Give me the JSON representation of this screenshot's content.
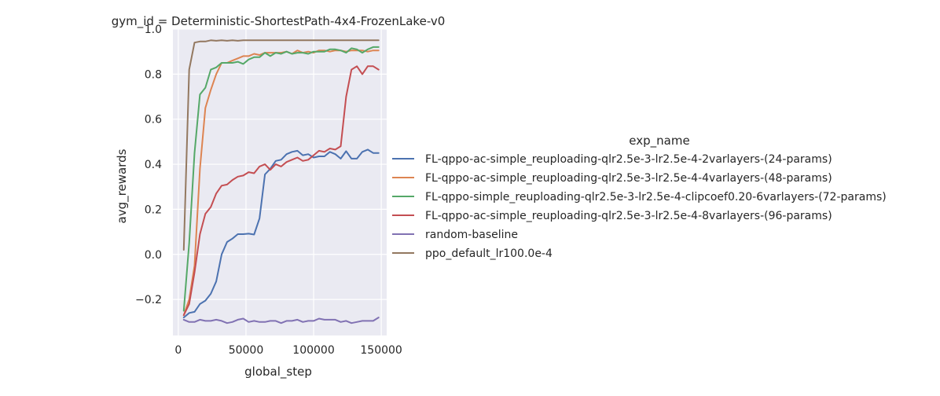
{
  "chart_data": {
    "type": "line",
    "title": "gym_id = Deterministic-ShortestPath-4x4-FrozenLake-v0",
    "xlabel": "global_step",
    "ylabel": "avg_rewards",
    "xlim": [
      -4000,
      154000
    ],
    "ylim": [
      -0.36,
      1.0
    ],
    "xticks": [
      0,
      50000,
      100000,
      150000
    ],
    "xtick_labels": [
      "0",
      "50000",
      "100000",
      "150000"
    ],
    "yticks": [
      -0.2,
      0.0,
      0.2,
      0.4,
      0.6,
      0.8,
      1.0
    ],
    "ytick_labels": [
      "−0.2",
      "0.0",
      "0.2",
      "0.4",
      "0.6",
      "0.8",
      "1.0"
    ],
    "grid": true,
    "legend_title": "exp_name",
    "legend_position": "right",
    "background_color": "#eaeaf2",
    "series": [
      {
        "name": "FL-qppo-ac-simple_reuploading-qlr2.5e-3-lr2.5e-4-2varlayers-(24-params)",
        "color": "#4c72b0",
        "x": [
          4000,
          8000,
          12000,
          16000,
          20000,
          24000,
          28000,
          32000,
          36000,
          40000,
          44000,
          48000,
          52000,
          56000,
          60000,
          64000,
          68000,
          72000,
          76000,
          80000,
          84000,
          88000,
          92000,
          96000,
          100000,
          104000,
          108000,
          112000,
          116000,
          120000,
          124000,
          128000,
          132000,
          136000,
          140000,
          144000,
          148000
        ],
        "y": [
          -0.28,
          -0.26,
          -0.255,
          -0.22,
          -0.205,
          -0.175,
          -0.12,
          0.0,
          0.055,
          0.07,
          0.09,
          0.09,
          0.092,
          0.088,
          0.16,
          0.355,
          0.38,
          0.415,
          0.42,
          0.445,
          0.455,
          0.46,
          0.44,
          0.445,
          0.43,
          0.435,
          0.435,
          0.455,
          0.445,
          0.425,
          0.458,
          0.425,
          0.425,
          0.455,
          0.465,
          0.45,
          0.45
        ]
      },
      {
        "name": "FL-qppo-ac-simple_reuploading-qlr2.5e-3-lr2.5e-4-4varlayers-(48-params)",
        "color": "#dd8452",
        "x": [
          4000,
          8000,
          12000,
          16000,
          20000,
          24000,
          28000,
          32000,
          36000,
          40000,
          44000,
          48000,
          52000,
          56000,
          60000,
          64000,
          68000,
          72000,
          76000,
          80000,
          84000,
          88000,
          92000,
          96000,
          100000,
          104000,
          108000,
          112000,
          116000,
          120000,
          124000,
          128000,
          132000,
          136000,
          140000,
          144000,
          148000
        ],
        "y": [
          -0.27,
          -0.2,
          -0.05,
          0.38,
          0.65,
          0.73,
          0.8,
          0.85,
          0.85,
          0.86,
          0.87,
          0.88,
          0.88,
          0.89,
          0.885,
          0.895,
          0.895,
          0.895,
          0.895,
          0.9,
          0.89,
          0.905,
          0.895,
          0.9,
          0.895,
          0.905,
          0.905,
          0.9,
          0.905,
          0.905,
          0.9,
          0.905,
          0.905,
          0.905,
          0.9,
          0.905,
          0.905
        ]
      },
      {
        "name": "FL-qppo-simple_reuploading-qlr2.5e-3-lr2.5e-4-clipcoef0.20-6varlayers-(72-params)",
        "color": "#55a868",
        "x": [
          4000,
          8000,
          12000,
          16000,
          20000,
          24000,
          28000,
          32000,
          36000,
          40000,
          44000,
          48000,
          52000,
          56000,
          60000,
          64000,
          68000,
          72000,
          76000,
          80000,
          84000,
          88000,
          92000,
          96000,
          100000,
          104000,
          108000,
          112000,
          116000,
          120000,
          124000,
          128000,
          132000,
          136000,
          140000,
          144000,
          148000
        ],
        "y": [
          -0.25,
          0.05,
          0.45,
          0.71,
          0.74,
          0.82,
          0.83,
          0.85,
          0.85,
          0.85,
          0.855,
          0.845,
          0.865,
          0.875,
          0.875,
          0.895,
          0.88,
          0.895,
          0.89,
          0.9,
          0.89,
          0.895,
          0.895,
          0.89,
          0.9,
          0.9,
          0.9,
          0.91,
          0.91,
          0.905,
          0.895,
          0.915,
          0.91,
          0.895,
          0.91,
          0.92,
          0.92
        ]
      },
      {
        "name": "FL-qppo-ac-simple_reuploading-qlr2.5e-3-lr2.5e-4-8varlayers-(96-params)",
        "color": "#c44e52",
        "x": [
          4000,
          8000,
          12000,
          16000,
          20000,
          24000,
          28000,
          32000,
          36000,
          40000,
          44000,
          48000,
          52000,
          56000,
          60000,
          64000,
          68000,
          72000,
          76000,
          80000,
          84000,
          88000,
          92000,
          96000,
          100000,
          104000,
          108000,
          112000,
          116000,
          120000,
          124000,
          128000,
          132000,
          136000,
          140000,
          144000,
          148000
        ],
        "y": [
          -0.27,
          -0.22,
          -0.08,
          0.09,
          0.18,
          0.21,
          0.27,
          0.305,
          0.31,
          0.33,
          0.345,
          0.35,
          0.365,
          0.36,
          0.39,
          0.4,
          0.375,
          0.4,
          0.39,
          0.41,
          0.42,
          0.43,
          0.415,
          0.42,
          0.44,
          0.46,
          0.455,
          0.47,
          0.465,
          0.48,
          0.7,
          0.82,
          0.835,
          0.8,
          0.835,
          0.835,
          0.82
        ]
      },
      {
        "name": "random-baseline",
        "color": "#8172b3",
        "x": [
          4000,
          8000,
          12000,
          16000,
          20000,
          24000,
          28000,
          32000,
          36000,
          40000,
          44000,
          48000,
          52000,
          56000,
          60000,
          64000,
          68000,
          72000,
          76000,
          80000,
          84000,
          88000,
          92000,
          96000,
          100000,
          104000,
          108000,
          112000,
          116000,
          120000,
          124000,
          128000,
          132000,
          136000,
          140000,
          144000,
          148000
        ],
        "y": [
          -0.29,
          -0.3,
          -0.3,
          -0.29,
          -0.295,
          -0.295,
          -0.29,
          -0.295,
          -0.305,
          -0.3,
          -0.29,
          -0.285,
          -0.3,
          -0.295,
          -0.3,
          -0.3,
          -0.295,
          -0.295,
          -0.305,
          -0.295,
          -0.295,
          -0.29,
          -0.3,
          -0.295,
          -0.295,
          -0.285,
          -0.29,
          -0.29,
          -0.29,
          -0.3,
          -0.295,
          -0.305,
          -0.3,
          -0.295,
          -0.295,
          -0.295,
          -0.28
        ]
      },
      {
        "name": "ppo_default_lr100.0e-4",
        "color": "#937860",
        "x": [
          4000,
          8000,
          12000,
          16000,
          20000,
          24000,
          28000,
          32000,
          36000,
          40000,
          44000,
          48000,
          52000,
          56000,
          60000,
          64000,
          68000,
          72000,
          76000,
          80000,
          84000,
          88000,
          92000,
          96000,
          100000,
          104000,
          108000,
          112000,
          116000,
          120000,
          124000,
          128000,
          132000,
          136000,
          140000,
          144000,
          148000
        ],
        "y": [
          0.02,
          0.82,
          0.94,
          0.945,
          0.945,
          0.95,
          0.948,
          0.95,
          0.948,
          0.95,
          0.948,
          0.95,
          0.95,
          0.95,
          0.95,
          0.95,
          0.95,
          0.95,
          0.95,
          0.95,
          0.95,
          0.95,
          0.95,
          0.95,
          0.95,
          0.95,
          0.95,
          0.95,
          0.95,
          0.95,
          0.95,
          0.95,
          0.95,
          0.95,
          0.95,
          0.95,
          0.95
        ]
      }
    ]
  }
}
